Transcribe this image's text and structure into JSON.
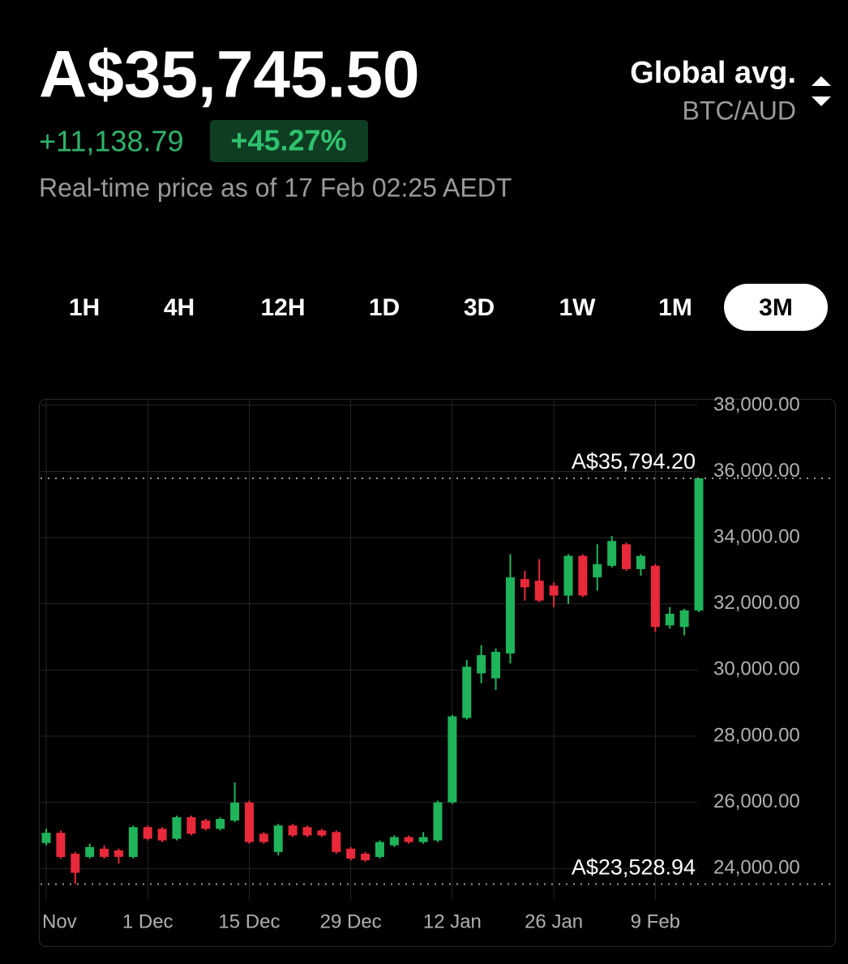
{
  "header": {
    "price": "A$35,745.50",
    "change": "+11,138.79",
    "change_pct": "+45.27%",
    "timestamp": "Real-time price as of 17 Feb 02:25 AEDT",
    "source": "Global avg.",
    "pair": "BTC/AUD"
  },
  "tabs": [
    "1H",
    "4H",
    "12H",
    "1D",
    "3D",
    "1W",
    "1M",
    "3M"
  ],
  "selected_tab": 7,
  "chart_data": {
    "type": "candlestick",
    "categories": [
      "Nov",
      null,
      null,
      null,
      null,
      null,
      null,
      "1 Dec",
      null,
      null,
      null,
      null,
      null,
      null,
      "15 Dec",
      null,
      null,
      null,
      null,
      null,
      null,
      "29 Dec",
      null,
      null,
      null,
      null,
      null,
      null,
      "12 Jan",
      null,
      null,
      null,
      null,
      null,
      null,
      "26 Jan",
      null,
      null,
      null,
      null,
      null,
      null,
      "9 Feb",
      null,
      null,
      null
    ],
    "open": [
      24770,
      25080,
      24450,
      24350,
      24600,
      24550,
      24350,
      25250,
      25200,
      24900,
      25550,
      25450,
      25200,
      25450,
      25990,
      25050,
      24500,
      25300,
      25250,
      25150,
      25100,
      24600,
      24450,
      24350,
      24700,
      24950,
      24800,
      24850,
      26000,
      28550,
      29900,
      29750,
      30500,
      32750,
      32700,
      32550,
      32250,
      33450,
      32800,
      33150,
      33800,
      33050,
      33150,
      31350,
      31300,
      31800
    ],
    "high": [
      25200,
      25150,
      24500,
      24750,
      24700,
      24600,
      25300,
      25300,
      25250,
      25600,
      25600,
      25500,
      25550,
      26600,
      26050,
      25100,
      25350,
      25350,
      25300,
      25200,
      25150,
      24650,
      24500,
      24850,
      25000,
      25000,
      25100,
      26050,
      28650,
      30300,
      30750,
      30650,
      33500,
      33000,
      33350,
      32650,
      33500,
      33500,
      33800,
      34050,
      33850,
      33500,
      33200,
      31900,
      31850,
      35794.2
    ],
    "low": [
      24700,
      24300,
      23528.94,
      24300,
      24300,
      24150,
      24300,
      24850,
      24800,
      24850,
      25000,
      25150,
      25150,
      25400,
      24750,
      24750,
      24400,
      24950,
      24950,
      24950,
      24450,
      24250,
      24200,
      24300,
      24650,
      24750,
      24750,
      24800,
      25950,
      28500,
      29600,
      29400,
      30200,
      32100,
      32050,
      31900,
      32000,
      32200,
      32400,
      33100,
      33000,
      32850,
      31150,
      31250,
      31050,
      31750
    ],
    "close": [
      25080,
      24350,
      23870,
      24650,
      24350,
      24350,
      25250,
      24900,
      24850,
      25550,
      25050,
      25200,
      25500,
      25990,
      24800,
      24800,
      25300,
      25000,
      25000,
      25000,
      24500,
      24300,
      24250,
      24800,
      24950,
      24800,
      24950,
      26000,
      28600,
      30100,
      30450,
      30550,
      32800,
      32500,
      32100,
      32250,
      33450,
      32250,
      33200,
      33900,
      33050,
      33450,
      31300,
      31700,
      31800,
      35794.2
    ],
    "ylim": [
      23050,
      38170
    ],
    "yticks": [
      {
        "value": 24000,
        "label": "24,000.00"
      },
      {
        "value": 26000,
        "label": "26,000.00"
      },
      {
        "value": 28000,
        "label": "28,000.00"
      },
      {
        "value": 30000,
        "label": "30,000.00"
      },
      {
        "value": 32000,
        "label": "32,000.00"
      },
      {
        "value": 34000,
        "label": "34,000.00"
      },
      {
        "value": 36000,
        "label": "36,000.00"
      },
      {
        "value": 38000,
        "label": "38,000.00"
      }
    ],
    "annotations": [
      {
        "value": 35794.2,
        "label": "A$35,794.20"
      },
      {
        "value": 23528.94,
        "label": "A$23,528.94"
      }
    ],
    "up_color": "#1fb35a",
    "down_color": "#e8293a",
    "grid": true
  }
}
